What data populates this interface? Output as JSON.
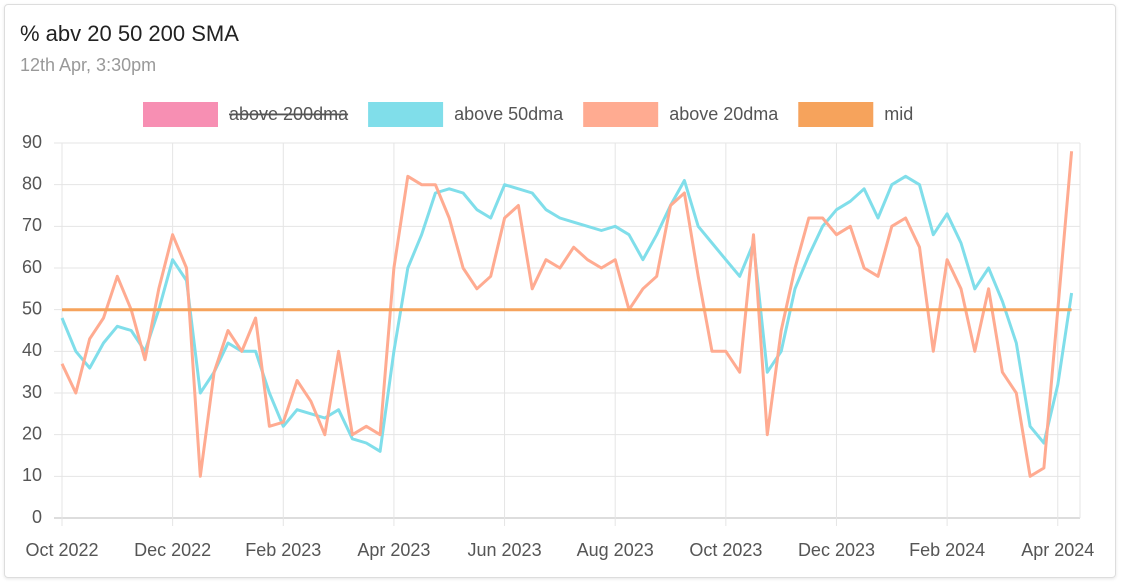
{
  "chart_data": {
    "type": "line",
    "title": "% abv 20 50 200 SMA",
    "subtitle": "12th Apr, 3:30pm",
    "categories": [
      "Oct 2022",
      null,
      null,
      null,
      null,
      null,
      null,
      null,
      "Dec 2022",
      null,
      null,
      null,
      null,
      null,
      null,
      null,
      "Feb 2023",
      null,
      null,
      null,
      null,
      null,
      null,
      null,
      "Apr 2023",
      null,
      null,
      null,
      null,
      null,
      null,
      null,
      "Jun 2023",
      null,
      null,
      null,
      null,
      null,
      null,
      null,
      "Aug 2023",
      null,
      null,
      null,
      null,
      null,
      null,
      null,
      "Oct 2023",
      null,
      null,
      null,
      null,
      null,
      null,
      null,
      "Dec 2023",
      null,
      null,
      null,
      null,
      null,
      null,
      null,
      "Feb 2024",
      null,
      null,
      null,
      null,
      null,
      null,
      null,
      "Apr 2024",
      null
    ],
    "series": [
      {
        "name": "above 200dma",
        "color": "#f78fb3",
        "hidden": true
      },
      {
        "name": "above 50dma",
        "color": "#80deea",
        "values": [
          48,
          40,
          36,
          42,
          46,
          45,
          40,
          50,
          62,
          57,
          30,
          35,
          42,
          40,
          40,
          30,
          22,
          26,
          25,
          24,
          26,
          19,
          18,
          16,
          40,
          60,
          68,
          78,
          79,
          78,
          74,
          72,
          80,
          79,
          78,
          74,
          72,
          71,
          70,
          69,
          70,
          68,
          62,
          68,
          75,
          81,
          70,
          66,
          62,
          58,
          66,
          35,
          40,
          55,
          63,
          70,
          74,
          76,
          79,
          72,
          80,
          82,
          80,
          68,
          73,
          66,
          55,
          60,
          52,
          42,
          22,
          18,
          32,
          54
        ]
      },
      {
        "name": "above 20dma",
        "color": "#ffab91",
        "values": [
          37,
          30,
          43,
          48,
          58,
          50,
          38,
          55,
          68,
          60,
          10,
          35,
          45,
          40,
          48,
          22,
          23,
          33,
          28,
          20,
          40,
          20,
          22,
          20,
          60,
          82,
          80,
          80,
          72,
          60,
          55,
          58,
          72,
          75,
          55,
          62,
          60,
          65,
          62,
          60,
          62,
          50,
          55,
          58,
          75,
          78,
          58,
          40,
          40,
          35,
          68,
          20,
          45,
          60,
          72,
          72,
          68,
          70,
          60,
          58,
          70,
          72,
          65,
          40,
          62,
          55,
          40,
          55,
          35,
          30,
          10,
          12,
          50,
          88
        ]
      },
      {
        "name": "mid",
        "color": "#f6a35c",
        "values": [
          50,
          50,
          50,
          50,
          50,
          50,
          50,
          50,
          50,
          50,
          50,
          50,
          50,
          50,
          50,
          50,
          50,
          50,
          50,
          50,
          50,
          50,
          50,
          50,
          50,
          50,
          50,
          50,
          50,
          50,
          50,
          50,
          50,
          50,
          50,
          50,
          50,
          50,
          50,
          50,
          50,
          50,
          50,
          50,
          50,
          50,
          50,
          50,
          50,
          50,
          50,
          50,
          50,
          50,
          50,
          50,
          50,
          50,
          50,
          50,
          50,
          50,
          50,
          50,
          50,
          50,
          50,
          50,
          50,
          50,
          50,
          50,
          50,
          50
        ]
      }
    ],
    "ylim": [
      0,
      90
    ],
    "yticks": [
      0,
      10,
      20,
      30,
      40,
      50,
      60,
      70,
      80,
      90
    ],
    "grid": true,
    "legend": "top"
  }
}
